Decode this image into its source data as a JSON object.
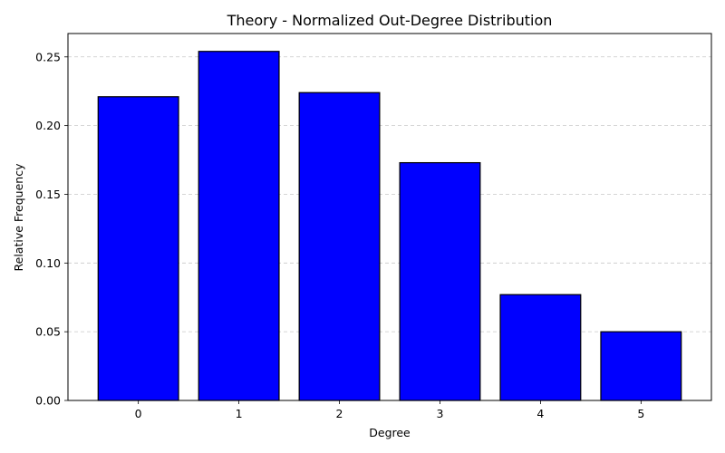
{
  "chart_data": {
    "type": "bar",
    "title": "Theory - Normalized Out-Degree Distribution",
    "xlabel": "Degree",
    "ylabel": "Relative Frequency",
    "categories": [
      "0",
      "1",
      "2",
      "3",
      "4",
      "5"
    ],
    "values": [
      0.221,
      0.254,
      0.224,
      0.173,
      0.077,
      0.05
    ],
    "ylim": [
      0,
      0.267
    ],
    "yticks": [
      0.0,
      0.05,
      0.1,
      0.15,
      0.2,
      0.25
    ],
    "ytick_labels": [
      "0.00",
      "0.05",
      "0.10",
      "0.15",
      "0.20",
      "0.25"
    ],
    "grid": "y-dashed",
    "legend": "none",
    "colors": {
      "bar_fill": "#0000ff",
      "bar_edge": "#000000"
    }
  }
}
